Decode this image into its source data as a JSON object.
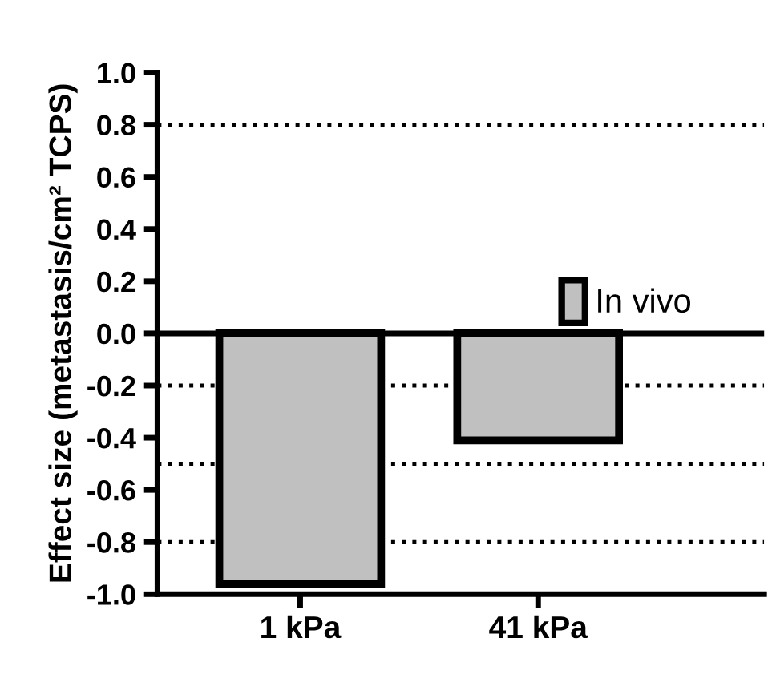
{
  "chart_data": {
    "type": "bar",
    "ylabel": "Effect size (metastasis/cm² TCPS)",
    "categories": [
      "1 kPa",
      "41 kPa"
    ],
    "series": [
      {
        "name": "In vivo",
        "color": "#c0c0c0",
        "values": [
          -0.96,
          -0.41
        ]
      }
    ],
    "ylim": [
      -1.0,
      1.0
    ],
    "yticks": [
      {
        "value": -1.0,
        "label": "-1.0"
      },
      {
        "value": -0.8,
        "label": "-0.8"
      },
      {
        "value": -0.6,
        "label": "-0.6"
      },
      {
        "value": -0.4,
        "label": "-0.4"
      },
      {
        "value": -0.2,
        "label": "-0.2"
      },
      {
        "value": 0.0,
        "label": "0.0"
      },
      {
        "value": 0.2,
        "label": "0.2"
      },
      {
        "value": 0.4,
        "label": "0.4"
      },
      {
        "value": 0.6,
        "label": "0.6"
      },
      {
        "value": 0.8,
        "label": "0.8"
      },
      {
        "value": 1.0,
        "label": "1.0"
      }
    ],
    "ref_lines": [
      {
        "axis": "y",
        "value": 0.8,
        "line_style": "dotted",
        "color": "#000000"
      },
      {
        "axis": "y",
        "value": 0.0,
        "line_style": "solid",
        "color": "#000000"
      },
      {
        "axis": "y",
        "value": -0.2,
        "line_style": "dotted",
        "color": "#000000"
      },
      {
        "axis": "y",
        "value": -0.5,
        "line_style": "dotted",
        "color": "#000000"
      },
      {
        "axis": "y",
        "value": -0.8,
        "line_style": "dotted",
        "color": "#000000"
      }
    ],
    "legend": "top right",
    "grid": false
  }
}
